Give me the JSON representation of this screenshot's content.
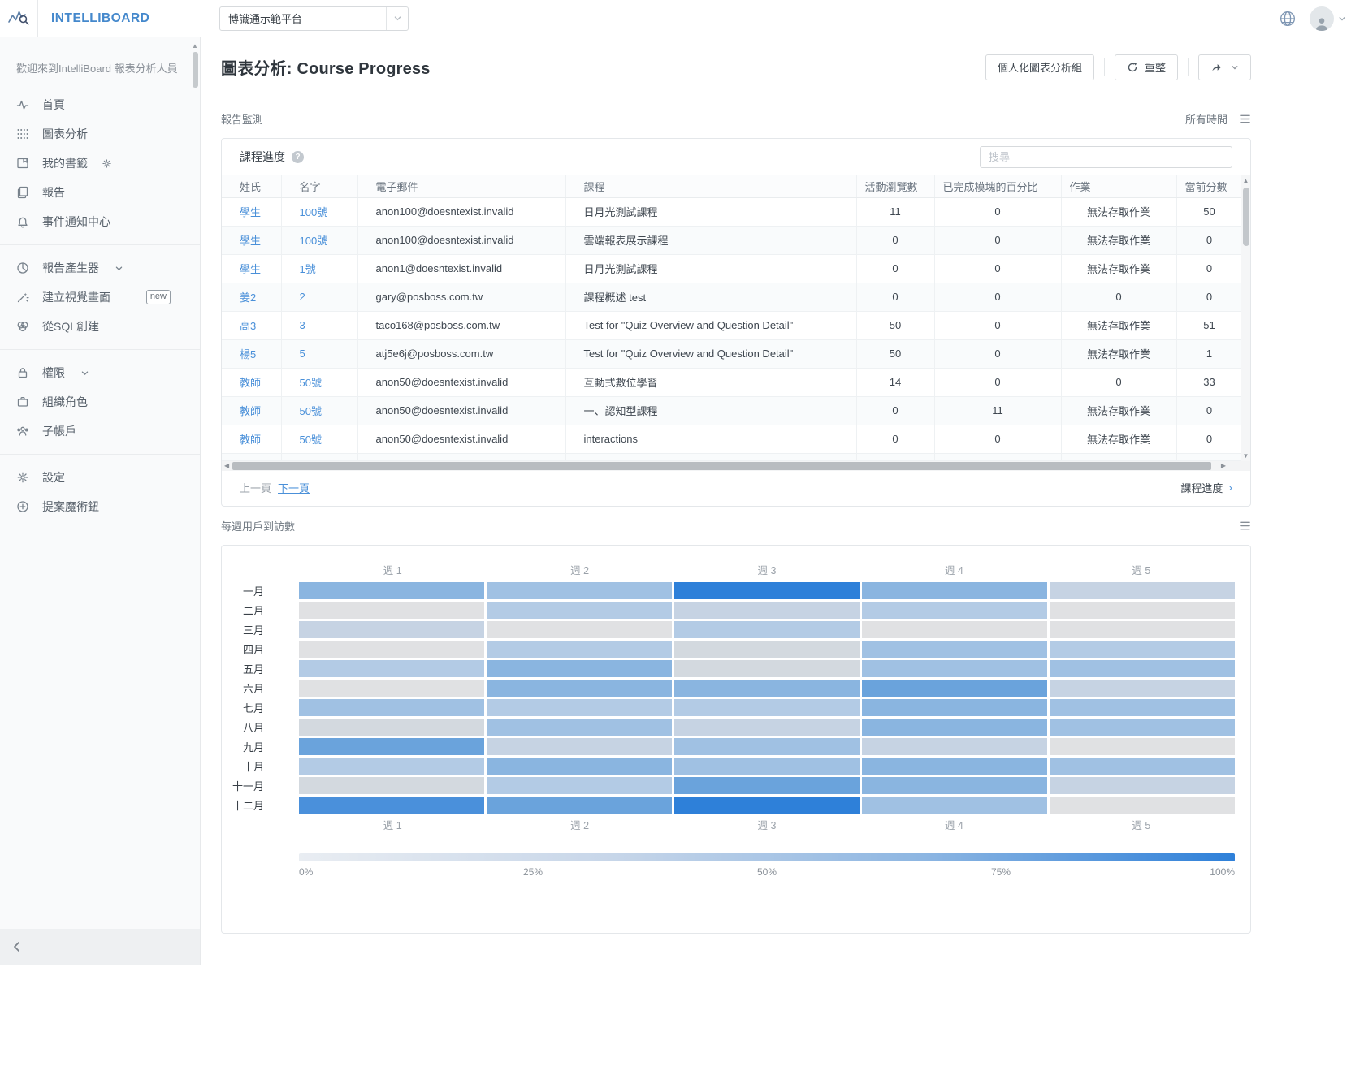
{
  "navbar": {
    "brand": "INTELLIBOARD",
    "platform_select": "博識通示範平台"
  },
  "sidebar": {
    "welcome": "歡迎來到IntelliBoard 報表分析人員",
    "groups": [
      [
        {
          "name": "home",
          "icon": "pulse",
          "label": "首頁"
        },
        {
          "name": "chart-analysis",
          "icon": "grid",
          "label": "圖表分析"
        },
        {
          "name": "my-bookmarks",
          "icon": "bookmark",
          "label": "我的書籤",
          "trailing_icon": "gear"
        },
        {
          "name": "reports",
          "icon": "copy",
          "label": "報告"
        },
        {
          "name": "notification-center",
          "icon": "bell",
          "label": "事件通知中心"
        }
      ],
      [
        {
          "name": "report-generator",
          "icon": "pie",
          "label": "報告產生器",
          "chevron": true
        },
        {
          "name": "create-visual",
          "icon": "wand",
          "label": "建立視覺畫面",
          "badge": "new"
        },
        {
          "name": "create-from-sql",
          "icon": "venn",
          "label": "從SQL創建"
        }
      ],
      [
        {
          "name": "permissions",
          "icon": "lock",
          "label": "權限",
          "chevron": true
        },
        {
          "name": "org-roles",
          "icon": "briefcase",
          "label": "組織角色"
        },
        {
          "name": "subaccounts",
          "icon": "users",
          "label": "子帳戶"
        }
      ],
      [
        {
          "name": "settings",
          "icon": "gear",
          "label": "設定"
        },
        {
          "name": "proposal-wizard",
          "icon": "plus",
          "label": "提案魔術鈕"
        }
      ]
    ]
  },
  "header": {
    "title_prefix": "圖表分析:",
    "title_course": "Course Progress",
    "personalize_label": "個人化圖表分析組",
    "refresh_label": "重整"
  },
  "monitor": {
    "title": "報告監測",
    "time_filter": "所有時間"
  },
  "table_card": {
    "title": "課程進度",
    "help_badge": "?",
    "search_placeholder": "搜尋",
    "columns": [
      "姓氏",
      "名字",
      "電子郵件",
      "課程",
      "活動瀏覽數",
      "已完成模塊的百分比",
      "作業",
      "當前分數"
    ],
    "rows": [
      [
        "學生",
        "100號",
        "anon100@doesntexist.invalid",
        "日月光測試課程",
        "11",
        "0",
        "無法存取作業",
        "50"
      ],
      [
        "學生",
        "100號",
        "anon100@doesntexist.invalid",
        "雲端報表展示課程",
        "0",
        "0",
        "無法存取作業",
        "0"
      ],
      [
        "學生",
        "1號",
        "anon1@doesntexist.invalid",
        "日月光測試課程",
        "0",
        "0",
        "無法存取作業",
        "0"
      ],
      [
        "姜2",
        "2",
        "gary@posboss.com.tw",
        "課程概述 test",
        "0",
        "0",
        "0",
        "0"
      ],
      [
        "高3",
        "3",
        "taco168@posboss.com.tw",
        "Test for \"Quiz Overview and Question Detail\"",
        "50",
        "0",
        "無法存取作業",
        "51"
      ],
      [
        "楊5",
        "5",
        "atj5e6j@posboss.com.tw",
        "Test for \"Quiz Overview and Question Detail\"",
        "50",
        "0",
        "無法存取作業",
        "1"
      ],
      [
        "教師",
        "50號",
        "anon50@doesntexist.invalid",
        "互動式數位學習",
        "14",
        "0",
        "0",
        "33"
      ],
      [
        "教師",
        "50號",
        "anon50@doesntexist.invalid",
        "一、認知型課程",
        "0",
        "11",
        "無法存取作業",
        "0"
      ],
      [
        "教師",
        "50號",
        "anon50@doesntexist.invalid",
        "interactions",
        "0",
        "0",
        "無法存取作業",
        "0"
      ]
    ],
    "pagination": {
      "prev": "上一頁",
      "next": "下一頁"
    },
    "footer_link": "課程進度"
  },
  "chart_data": {
    "type": "heatmap",
    "title": "每週用戶到訪數",
    "x_labels": [
      "週 1",
      "週 2",
      "週 3",
      "週 4",
      "週 5"
    ],
    "y_labels": [
      "一月",
      "二月",
      "三月",
      "四月",
      "五月",
      "六月",
      "七月",
      "八月",
      "九月",
      "十月",
      "十一月",
      "十二月"
    ],
    "palette": [
      "#e0e1e3",
      "#d3d9df",
      "#c6d3e3",
      "#b3cbe5",
      "#a0c1e3",
      "#8ab5e0",
      "#6aa3dc",
      "#4a90db",
      "#2e80d9"
    ],
    "levels": [
      [
        5,
        4,
        8,
        5,
        2
      ],
      [
        0,
        3,
        2,
        3,
        0
      ],
      [
        2,
        0,
        3,
        0,
        0
      ],
      [
        0,
        3,
        1,
        4,
        3
      ],
      [
        3,
        5,
        1,
        4,
        4
      ],
      [
        0,
        5,
        5,
        6,
        2
      ],
      [
        4,
        3,
        3,
        5,
        4
      ],
      [
        1,
        4,
        2,
        5,
        4
      ],
      [
        6,
        2,
        4,
        2,
        0
      ],
      [
        3,
        5,
        4,
        5,
        4
      ],
      [
        1,
        3,
        6,
        5,
        2
      ],
      [
        7,
        6,
        8,
        4,
        0
      ]
    ],
    "level_to_percent_approx": [
      2,
      8,
      16,
      26,
      36,
      48,
      62,
      78,
      95
    ],
    "legend": {
      "labels": [
        "0%",
        "25%",
        "50%",
        "75%",
        "100%"
      ],
      "gradient": [
        "#e9edf2",
        "#c7d6e9",
        "#8db6e2",
        "#2e80d9"
      ]
    }
  }
}
